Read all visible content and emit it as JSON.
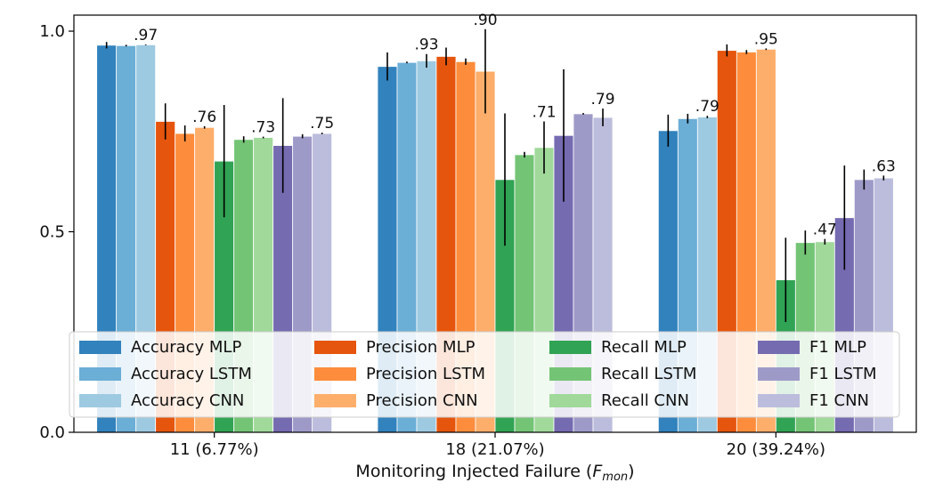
{
  "chart_data": {
    "type": "bar",
    "xlabel_prefix": "Monitoring Injected Failure (",
    "xlabel_symbol": "F",
    "xlabel_subscript": "mon",
    "xlabel_suffix": ")",
    "ylabel": "",
    "ylim": [
      0.0,
      1.04
    ],
    "yticks": [
      0.0,
      0.5,
      1.0
    ],
    "ytick_labels": [
      "0.0",
      "0.5",
      "1.0"
    ],
    "grid": false,
    "legend_position": "lower center",
    "categories": [
      "11 (6.77%)",
      "18 (21.07%)",
      "20 (39.24%)"
    ],
    "series": [
      {
        "name": "Accuracy MLP",
        "color": "#3182bd",
        "values": [
          0.965,
          0.912,
          0.752
        ],
        "errors": [
          0.008,
          0.035,
          0.04
        ]
      },
      {
        "name": "Accuracy LSTM",
        "color": "#6baed6",
        "values": [
          0.964,
          0.922,
          0.782
        ],
        "errors": [
          0.002,
          0.002,
          0.012
        ]
      },
      {
        "name": "Accuracy CNN",
        "color": "#9ecae1",
        "values": [
          0.966,
          0.926,
          0.786
        ],
        "errors": [
          0.001,
          0.017,
          0.003
        ]
      },
      {
        "name": "Precision MLP",
        "color": "#e6550d",
        "values": [
          0.775,
          0.937,
          0.952
        ],
        "errors": [
          0.045,
          0.022,
          0.015
        ]
      },
      {
        "name": "Precision LSTM",
        "color": "#fd8d3c",
        "values": [
          0.745,
          0.924,
          0.948
        ],
        "errors": [
          0.02,
          0.008,
          0.005
        ]
      },
      {
        "name": "Precision CNN",
        "color": "#fdae6b",
        "values": [
          0.76,
          0.9,
          0.955
        ],
        "errors": [
          0.003,
          0.105,
          0.002
        ]
      },
      {
        "name": "Recall MLP",
        "color": "#31a354",
        "values": [
          0.676,
          0.63,
          0.38
        ],
        "errors": [
          0.14,
          0.165,
          0.105
        ]
      },
      {
        "name": "Recall LSTM",
        "color": "#74c476",
        "values": [
          0.73,
          0.692,
          0.473
        ],
        "errors": [
          0.008,
          0.007,
          0.03
        ]
      },
      {
        "name": "Recall CNN",
        "color": "#a1d99b",
        "values": [
          0.735,
          0.71,
          0.475
        ],
        "errors": [
          0.002,
          0.065,
          0.007
        ]
      },
      {
        "name": "F1 MLP",
        "color": "#756bb1",
        "values": [
          0.715,
          0.74,
          0.535
        ],
        "errors": [
          0.118,
          0.165,
          0.13
        ]
      },
      {
        "name": "F1 LSTM",
        "color": "#9e9ac8",
        "values": [
          0.738,
          0.794,
          0.63
        ],
        "errors": [
          0.005,
          0.002,
          0.025
        ]
      },
      {
        "name": "F1 CNN",
        "color": "#bcbddc",
        "values": [
          0.745,
          0.785,
          0.634
        ],
        "errors": [
          0.002,
          0.022,
          0.006
        ]
      }
    ],
    "annotations": [
      {
        "category": 0,
        "series": 2,
        "text": ".97"
      },
      {
        "category": 0,
        "series": 5,
        "text": ".76"
      },
      {
        "category": 0,
        "series": 8,
        "text": ".73"
      },
      {
        "category": 0,
        "series": 11,
        "text": ".75"
      },
      {
        "category": 1,
        "series": 2,
        "text": ".93"
      },
      {
        "category": 1,
        "series": 5,
        "text": ".90"
      },
      {
        "category": 1,
        "series": 8,
        "text": ".71"
      },
      {
        "category": 1,
        "series": 11,
        "text": ".79"
      },
      {
        "category": 2,
        "series": 2,
        "text": ".79"
      },
      {
        "category": 2,
        "series": 5,
        "text": ".95"
      },
      {
        "category": 2,
        "series": 8,
        "text": ".47"
      },
      {
        "category": 2,
        "series": 11,
        "text": ".63"
      }
    ]
  }
}
